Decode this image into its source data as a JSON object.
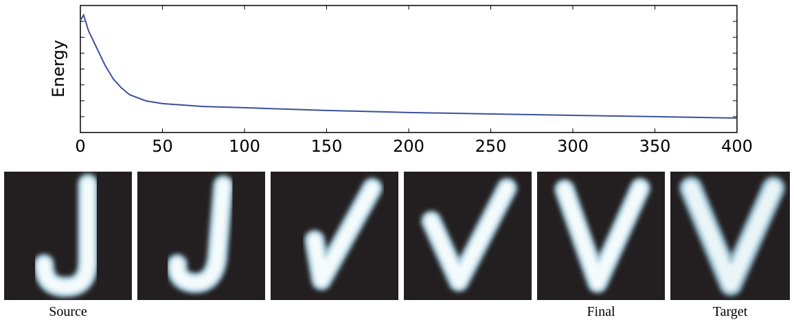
{
  "chart_data": {
    "type": "line",
    "ylabel": "Energy",
    "x": [
      0,
      2,
      5,
      10,
      15,
      20,
      25,
      30,
      40,
      50,
      75,
      100,
      150,
      200,
      250,
      300,
      350,
      400
    ],
    "series": [
      {
        "name": "Energy",
        "color": "#3a4f9c",
        "values": [
          7.06,
          7.4,
          6.4,
          5.32,
          4.24,
          3.38,
          2.81,
          2.38,
          1.99,
          1.82,
          1.64,
          1.56,
          1.39,
          1.26,
          1.17,
          1.08,
          1.0,
          0.91
        ]
      }
    ],
    "xlim": [
      0,
      400
    ],
    "xticks": [
      0,
      50,
      100,
      150,
      200,
      250,
      300,
      350,
      400
    ],
    "ylim": [
      0,
      8
    ],
    "yticks": [
      1,
      2,
      3,
      4,
      5,
      6,
      7
    ],
    "ytick_labels": false,
    "grid": false
  },
  "panel_labels": [
    "Source",
    null,
    null,
    null,
    "Final",
    "Target"
  ]
}
